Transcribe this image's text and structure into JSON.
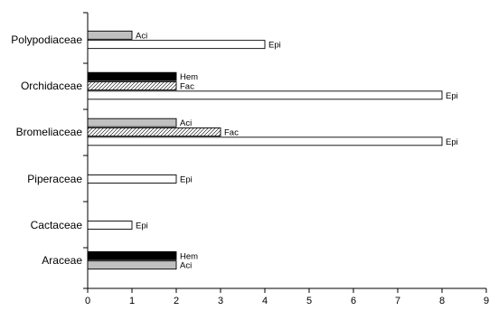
{
  "chart_data": {
    "type": "bar",
    "orientation": "horizontal",
    "title": "",
    "xlabel": "",
    "ylabel": "",
    "xlim": [
      0,
      9
    ],
    "x_ticks": [
      "0",
      "1",
      "2",
      "3",
      "4",
      "5",
      "6",
      "7",
      "8",
      "9"
    ],
    "grid": false,
    "legend": "none (bars labelled inline)",
    "styles": {
      "Aci": "gray fill #c0c0c0",
      "Epi": "white fill",
      "Hem": "black fill",
      "Fac": "diagonal hatch"
    },
    "colors": {
      "Aci": "#c0c0c0",
      "Epi": "#ffffff",
      "Hem": "#000000",
      "Fac": "hatch"
    },
    "categories": [
      {
        "name": "Polypodiaceae",
        "bars": [
          {
            "type": "Aci",
            "value": 1
          },
          {
            "type": "Epi",
            "value": 4
          }
        ]
      },
      {
        "name": "Orchidaceae",
        "bars": [
          {
            "type": "Hem",
            "value": 2
          },
          {
            "type": "Fac",
            "value": 2
          },
          {
            "type": "Epi",
            "value": 8
          }
        ]
      },
      {
        "name": "Bromeliaceae",
        "bars": [
          {
            "type": "Aci",
            "value": 2
          },
          {
            "type": "Fac",
            "value": 3
          },
          {
            "type": "Epi",
            "value": 8
          }
        ]
      },
      {
        "name": "Piperaceae",
        "bars": [
          {
            "type": "Epi",
            "value": 2
          }
        ]
      },
      {
        "name": "Cactaceae",
        "bars": [
          {
            "type": "Epi",
            "value": 1
          }
        ]
      },
      {
        "name": "Araceae",
        "bars": [
          {
            "type": "Hem",
            "value": 2
          },
          {
            "type": "Aci",
            "value": 2
          }
        ]
      }
    ]
  }
}
